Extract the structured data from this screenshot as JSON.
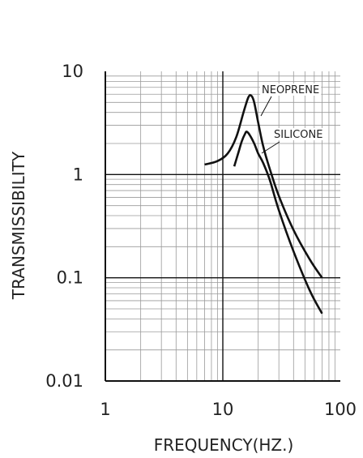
{
  "chart_data": {
    "type": "line",
    "xlabel": "FREQUENCY(HZ.)",
    "ylabel": "TRANSMISSIBILITY",
    "x_scale": "log",
    "y_scale": "log",
    "xlim": [
      1,
      100
    ],
    "ylim": [
      0.01,
      10
    ],
    "grid": true,
    "x_ticks": [
      "1",
      "10",
      "100"
    ],
    "y_ticks": [
      "10",
      "1",
      "0.1",
      "0.01"
    ],
    "series": [
      {
        "name": "NEOPRENE",
        "points": [
          [
            7,
            1.25
          ],
          [
            9,
            1.35
          ],
          [
            11,
            1.6
          ],
          [
            13,
            2.3
          ],
          [
            15,
            4.0
          ],
          [
            16.5,
            5.6
          ],
          [
            17.5,
            5.8
          ],
          [
            18.5,
            5.0
          ],
          [
            20,
            3.2
          ],
          [
            22,
            1.9
          ],
          [
            25,
            1.15
          ],
          [
            30,
            0.62
          ],
          [
            40,
            0.29
          ],
          [
            55,
            0.15
          ],
          [
            70,
            0.1
          ]
        ]
      },
      {
        "name": "SILICONE",
        "points": [
          [
            12.5,
            1.2
          ],
          [
            13.5,
            1.6
          ],
          [
            14.5,
            2.1
          ],
          [
            15.5,
            2.5
          ],
          [
            16,
            2.6
          ],
          [
            17,
            2.4
          ],
          [
            18.5,
            2.0
          ],
          [
            20,
            1.6
          ],
          [
            22,
            1.3
          ],
          [
            25,
            0.9
          ],
          [
            30,
            0.45
          ],
          [
            40,
            0.18
          ],
          [
            55,
            0.075
          ],
          [
            70,
            0.045
          ]
        ]
      }
    ],
    "colors": {
      "line": "#111111",
      "grid": "#9a9a9a",
      "grid_major": "#111111"
    }
  }
}
